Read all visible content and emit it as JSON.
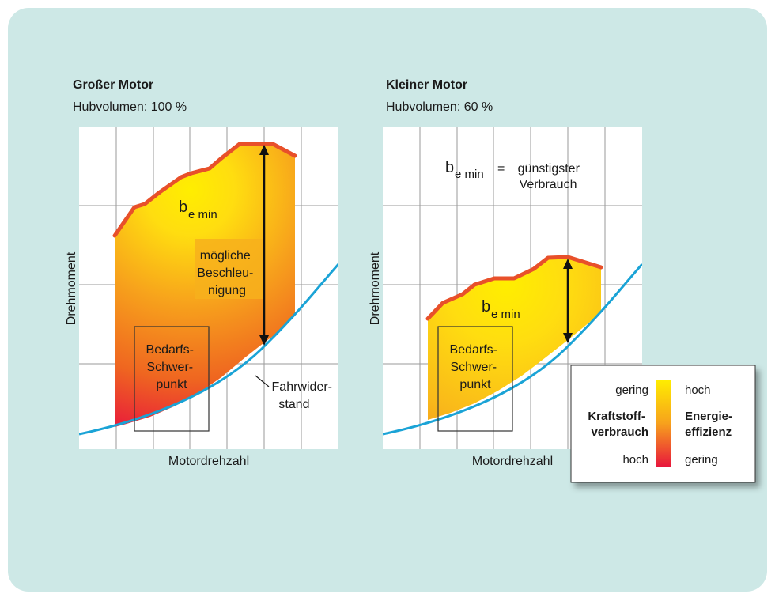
{
  "colors": {
    "panel_bg": "#cde8e6",
    "grid_bg": "#ffffff",
    "grid_line": "#9a9a9a",
    "resistance_curve": "#1aa3d6",
    "full_load_line": "#e8502a",
    "efficiency_high": "#ffee00",
    "efficiency_mid": "#f7a21c",
    "efficiency_low": "#e8173c"
  },
  "left_diagram": {
    "title": "Großer Motor",
    "subtitle": "Hubvolumen: 100 %",
    "y_axis_label": "Drehmoment",
    "x_axis_label": "Motordrehzahl",
    "bemin_main": "b",
    "bemin_sub": "e min",
    "acceleration_label_lines": [
      "mögliche",
      "Beschleu-",
      "nigung"
    ],
    "demand_box_lines": [
      "Bedarfs-",
      "Schwer-",
      "punkt"
    ],
    "resistance_label_lines": [
      "Fahrwider-",
      "stand"
    ]
  },
  "right_diagram": {
    "title": "Kleiner Motor",
    "subtitle": "Hubvolumen: 60 %",
    "y_axis_label": "Drehmoment",
    "x_axis_label": "Motordrehzahl",
    "bemin_main": "b",
    "bemin_sub": "e min",
    "demand_box_lines": [
      "Bedarfs-",
      "Schwer-",
      "punkt"
    ],
    "definition": {
      "symbol_main": "b",
      "symbol_sub": "e min",
      "equals": "=",
      "text_lines": [
        "günstigster",
        "Verbrauch"
      ]
    }
  },
  "legend": {
    "fuel_title_lines": [
      "Kraftstoff-",
      "verbrauch"
    ],
    "efficiency_title_lines": [
      "Energie-",
      "effizienz"
    ],
    "fuel_top": "gering",
    "fuel_bottom": "hoch",
    "efficiency_top": "hoch",
    "efficiency_bottom": "gering"
  }
}
